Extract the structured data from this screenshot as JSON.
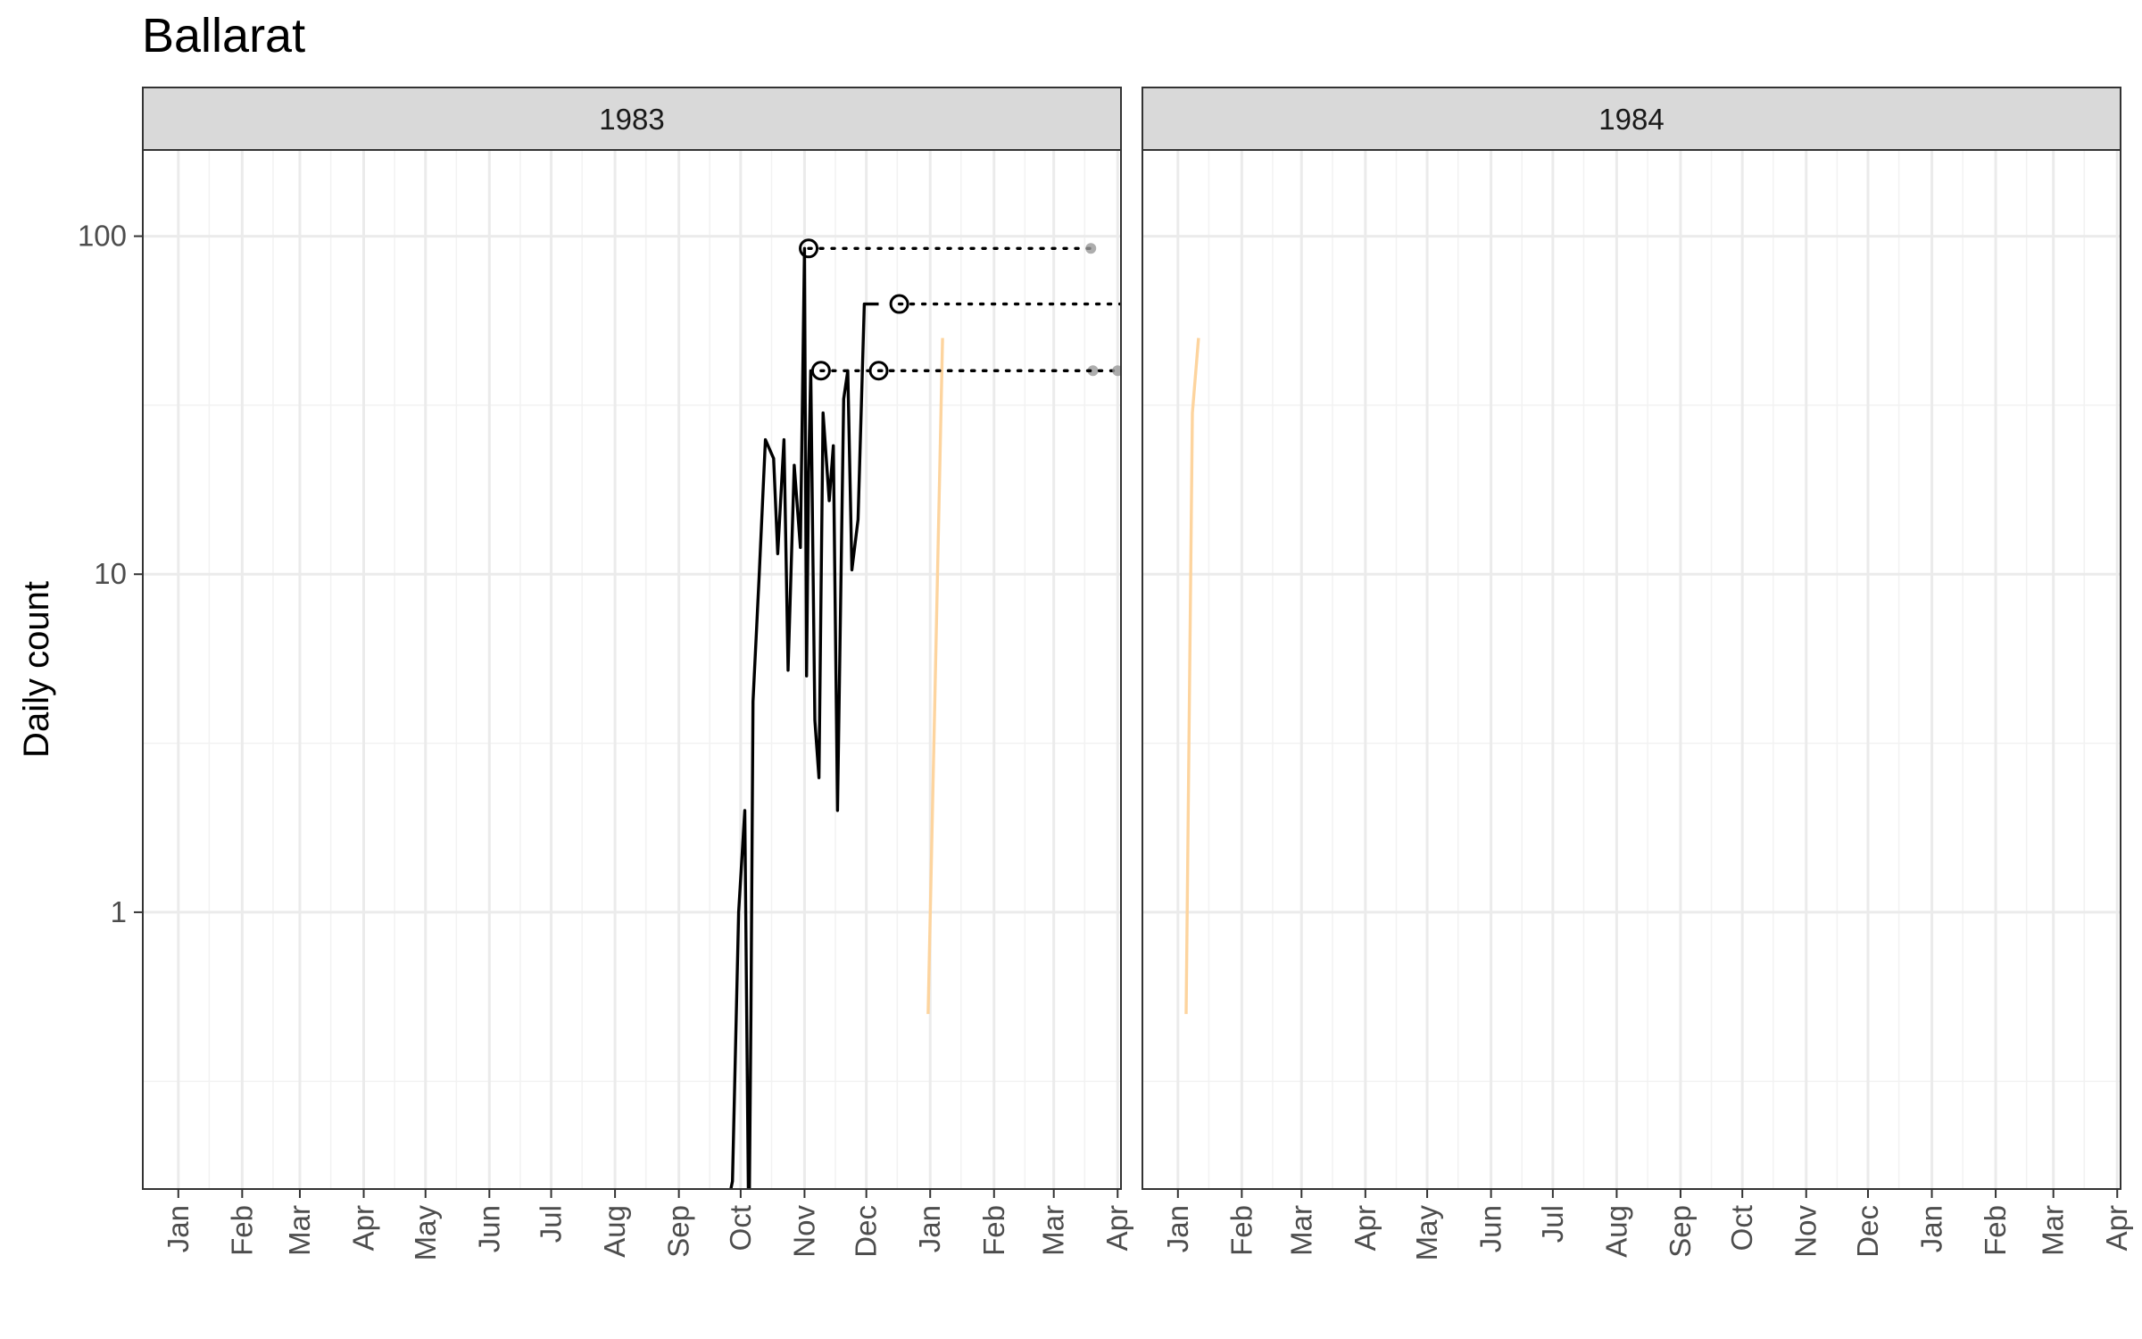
{
  "chart_data": {
    "type": "line",
    "title": "Ballarat",
    "ylabel": "Daily count",
    "xlabel": "",
    "y_scale": "log10",
    "y_ticks": [
      1,
      10,
      100
    ],
    "grid": true,
    "theme": "bw",
    "colors": {
      "main_line": "#000000",
      "secondary_line": "#fdd49e",
      "connector": "#000000",
      "end_dot": "#999999",
      "strip_fill": "#d9d9d9",
      "grid_major": "#ebebeb",
      "grid_minor": "#f2f2f2",
      "panel_border": "#333333"
    },
    "facets": [
      {
        "label": "1983",
        "x_ticks": [
          "Jan",
          "Feb",
          "Mar",
          "Apr",
          "May",
          "Jun",
          "Jul",
          "Aug",
          "Sep",
          "Oct",
          "Nov",
          "Dec",
          "Jan",
          "Feb",
          "Mar",
          "Apr"
        ],
        "series": [
          {
            "x": [
              "1983-09-20",
              "1983-09-27",
              "1983-09-30",
              "1983-10-03",
              "1983-10-05",
              "1983-10-06",
              "1983-10-07",
              "1983-10-10",
              "1983-10-13",
              "1983-10-17",
              "1983-10-19",
              "1983-10-22",
              "1983-10-24",
              "1983-10-27",
              "1983-10-30",
              "1983-11-01",
              "1983-11-02",
              "1983-11-03",
              "1983-11-04",
              "1983-11-06",
              "1983-11-08",
              "1983-11-10",
              "1983-11-13",
              "1983-11-15",
              "1983-11-17",
              "1983-11-20",
              "1983-11-22",
              "1983-11-24",
              "1983-11-27",
              "1983-11-30",
              "1983-12-02",
              "1983-12-04",
              "1983-12-07"
            ],
            "values": [
              0.1,
              0.16,
              1,
              2,
              0.1,
              0.5,
              4.2,
              10,
              25,
              22,
              11.5,
              25,
              5.2,
              21,
              12,
              92,
              5,
              20,
              40,
              3.7,
              2.5,
              30,
              16.5,
              24,
              2,
              33,
              40,
              10.3,
              14.5,
              63,
              63,
              63,
              63
            ]
          },
          {
            "x": [
              "1983-12-31",
              "1984-01-07"
            ],
            "values": [
              0.5,
              50
            ]
          }
        ],
        "peaks": [
          {
            "x": "1983-11-03",
            "value": 92,
            "end_x": "1984-03-19"
          },
          {
            "x": "1983-11-09",
            "value": 40,
            "end_x": "1984-03-20"
          },
          {
            "x": "1983-12-07",
            "value": 40,
            "end_x": "1984-04-01"
          },
          {
            "x": "1983-12-17",
            "value": 63,
            "end_x": "1984-04-08"
          }
        ]
      },
      {
        "label": "1984",
        "x_ticks": [
          "Jan",
          "Feb",
          "Mar",
          "Apr",
          "May",
          "Jun",
          "Jul",
          "Aug",
          "Sep",
          "Oct",
          "Nov",
          "Dec",
          "Jan",
          "Feb",
          "Mar",
          "Apr"
        ],
        "series": [
          {
            "x": [
              "1984-01-05",
              "1984-01-08",
              "1984-01-11"
            ],
            "values": [
              0.5,
              30,
              50
            ]
          }
        ],
        "peaks": []
      }
    ]
  }
}
